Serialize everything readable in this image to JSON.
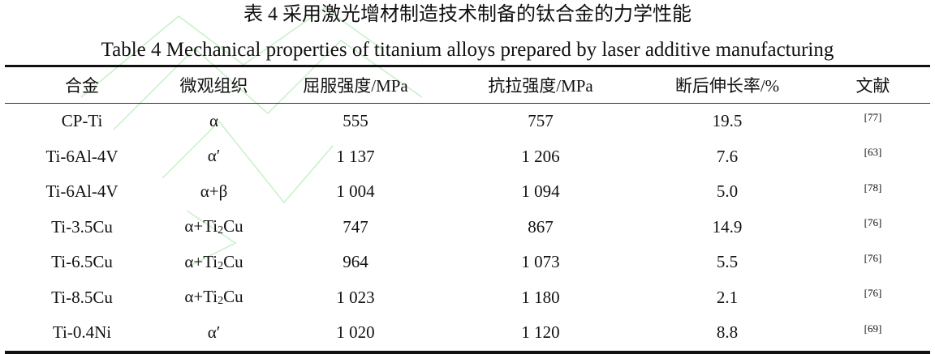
{
  "title_cn": "表 4  采用激光增材制造技术制备的钛合金的力学性能",
  "title_en": "Table 4 Mechanical properties of titanium alloys prepared by laser additive manufacturing",
  "columns": [
    "合金",
    "微观组织",
    "屈服强度/MPa",
    "抗拉强度/MPa",
    "断后伸长率/%",
    "文献"
  ],
  "rows": [
    {
      "alloy": "CP-Ti",
      "micro": "α",
      "micro_sub": "",
      "micro_tail": "",
      "yield": "555",
      "tensile": "757",
      "elong": "19.5",
      "ref": "[77]"
    },
    {
      "alloy": "Ti-6Al-4V",
      "micro": "α′",
      "micro_sub": "",
      "micro_tail": "",
      "yield": "1 137",
      "tensile": "1 206",
      "elong": "7.6",
      "ref": "[63]"
    },
    {
      "alloy": "Ti-6Al-4V",
      "micro": "α+β",
      "micro_sub": "",
      "micro_tail": "",
      "yield": "1 004",
      "tensile": "1 094",
      "elong": "5.0",
      "ref": "[78]"
    },
    {
      "alloy": "Ti-3.5Cu",
      "micro": "α+Ti",
      "micro_sub": "2",
      "micro_tail": "Cu",
      "yield": "747",
      "tensile": "867",
      "elong": "14.9",
      "ref": "[76]"
    },
    {
      "alloy": "Ti-6.5Cu",
      "micro": "α+Ti",
      "micro_sub": "2",
      "micro_tail": "Cu",
      "yield": "964",
      "tensile": "1 073",
      "elong": "5.5",
      "ref": "[76]"
    },
    {
      "alloy": "Ti-8.5Cu",
      "micro": "α+Ti",
      "micro_sub": "2",
      "micro_tail": "Cu",
      "yield": "1 023",
      "tensile": "1 180",
      "elong": "2.1",
      "ref": "[76]"
    },
    {
      "alloy": "Ti-0.4Ni",
      "micro": "α′",
      "micro_sub": "",
      "micro_tail": "",
      "yield": "1 020",
      "tensile": "1 120",
      "elong": "8.8",
      "ref": "[69]"
    }
  ],
  "watermark_color": "#c8f0c8"
}
